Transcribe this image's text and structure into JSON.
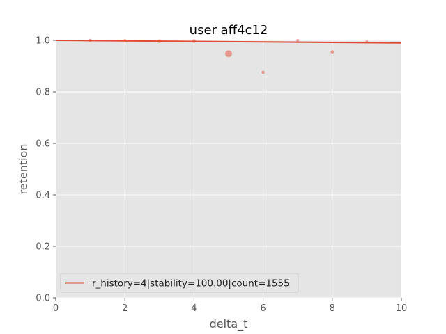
{
  "chart_data": {
    "type": "scatter",
    "title": "user aff4c12",
    "xlabel": "delta_t",
    "ylabel": "retention",
    "xlim": [
      0,
      10
    ],
    "ylim": [
      0,
      1.0
    ],
    "xticks": [
      0,
      2,
      4,
      6,
      8,
      10
    ],
    "yticks": [
      0.0,
      0.2,
      0.4,
      0.6,
      0.8,
      1.0
    ],
    "xtick_labels": [
      "0",
      "2",
      "4",
      "6",
      "8",
      "10"
    ],
    "ytick_labels": [
      "0.0",
      "0.2",
      "0.4",
      "0.6",
      "0.8",
      "1.0"
    ],
    "grid": true,
    "legend_position": "lower-left",
    "colors": {
      "background": "#e5e5e5",
      "grid": "#ffffff",
      "line": "#e24a33",
      "points": "#e24a33"
    },
    "scatter": {
      "points": [
        {
          "x": 1,
          "y": 1.0,
          "count": 90
        },
        {
          "x": 2,
          "y": 1.0,
          "count": 60
        },
        {
          "x": 3,
          "y": 0.997,
          "count": 120
        },
        {
          "x": 4,
          "y": 0.997,
          "count": 130
        },
        {
          "x": 5,
          "y": 0.948,
          "count": 420
        },
        {
          "x": 6,
          "y": 0.876,
          "count": 90
        },
        {
          "x": 7,
          "y": 1.0,
          "count": 70
        },
        {
          "x": 8,
          "y": 0.955,
          "count": 100
        },
        {
          "x": 9,
          "y": 0.995,
          "count": 60
        }
      ]
    },
    "series": [
      {
        "name": "r_history=4|stability=100.00|count=1555",
        "type": "line",
        "stability": 100.0,
        "x": [
          0,
          1,
          2,
          3,
          4,
          5,
          6,
          7,
          8,
          9,
          10
        ],
        "y": [
          1.0,
          0.999,
          0.998,
          0.997,
          0.996,
          0.995,
          0.994,
          0.993,
          0.992,
          0.991,
          0.99
        ]
      }
    ]
  }
}
